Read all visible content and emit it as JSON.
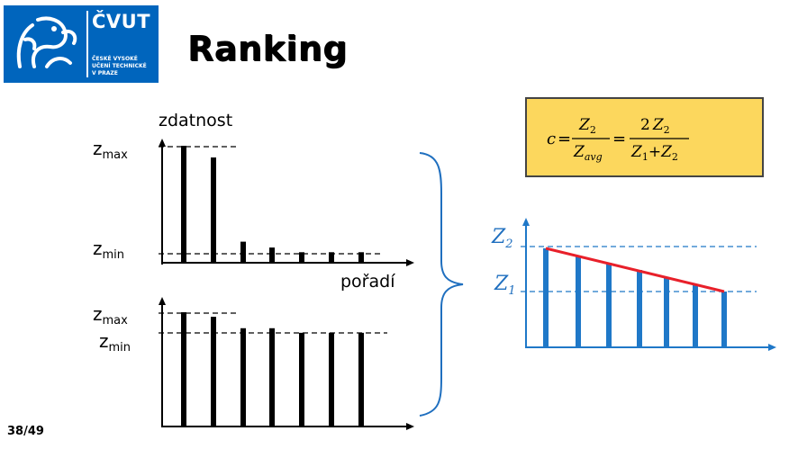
{
  "slide": {
    "title": "Ranking",
    "page": "38/49"
  },
  "logo": {
    "name": "ČVUT",
    "subtitle": [
      "ČESKÉ VYSOKÉ",
      "UČENÍ TECHNICKÉ",
      "V PRAZE"
    ]
  },
  "left_charts": {
    "y_label": "zdatnost",
    "x_label": "pořadí",
    "top": {
      "z_max_label": "z",
      "z_max_sub": "max",
      "z_min_label": "z",
      "z_min_sub": "min",
      "relative_bar_heights": [
        1.0,
        0.9,
        0.18,
        0.13,
        0.09,
        0.09,
        0.09
      ]
    },
    "bottom": {
      "z_max_label": "z",
      "z_max_sub": "max",
      "z_min_label": "z",
      "z_min_sub": "min",
      "relative_bar_heights": [
        1.0,
        0.96,
        0.86,
        0.86,
        0.82,
        0.82,
        0.82
      ]
    }
  },
  "formula": {
    "c": "c",
    "eq": "=",
    "z2": "Z",
    "sub2": "2",
    "zavg": "Z",
    "sub_avg": "avg",
    "two": "2",
    "z1": "Z",
    "sub1": "1",
    "plus": "+"
  },
  "right_chart": {
    "z2_label": "Z",
    "z2_sub": "2",
    "z1_label": "Z",
    "z1_sub": "1",
    "bar_color": "#1f78c8",
    "line_color": "#e8202a",
    "bar_count": 7
  },
  "colors": {
    "accent": "#0065bd",
    "formula_bg": "#fcd75d",
    "brace": "#1f6fbf"
  }
}
